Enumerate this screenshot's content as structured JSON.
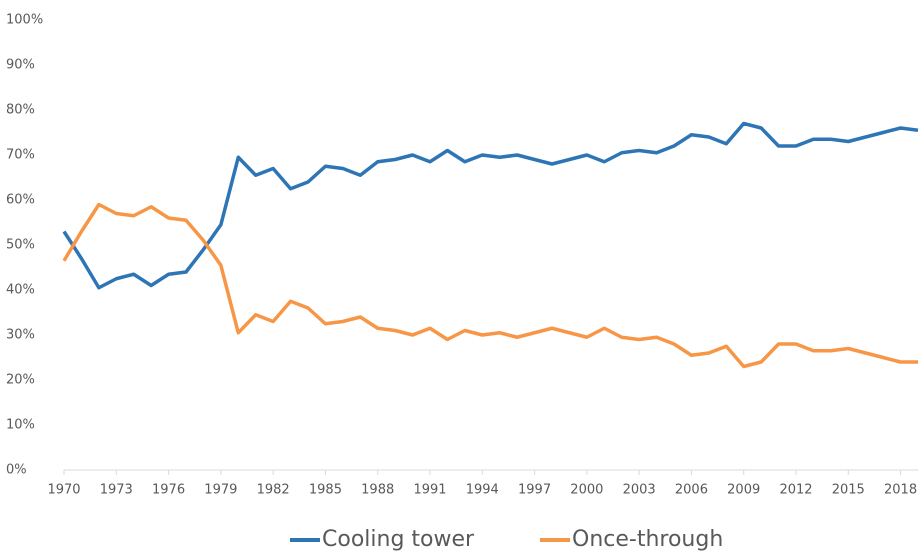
{
  "chart_data": {
    "type": "line",
    "x": [
      1970,
      1971,
      1972,
      1973,
      1974,
      1975,
      1976,
      1977,
      1978,
      1979,
      1980,
      1981,
      1982,
      1983,
      1984,
      1985,
      1986,
      1987,
      1988,
      1989,
      1990,
      1991,
      1992,
      1993,
      1994,
      1995,
      1996,
      1997,
      1998,
      1999,
      2000,
      2001,
      2002,
      2003,
      2004,
      2005,
      2006,
      2007,
      2008,
      2009,
      2010,
      2011,
      2012,
      2013,
      2014,
      2015,
      2016,
      2017,
      2018,
      2019
    ],
    "series": [
      {
        "name": "Cooling tower",
        "color": "#2e75b6",
        "values": [
          53,
          47,
          40.5,
          42.5,
          43.5,
          41,
          43.5,
          44,
          49,
          54.5,
          69.5,
          65.5,
          67,
          62.5,
          64,
          67.5,
          67,
          65.5,
          68.5,
          69,
          70,
          68.5,
          71,
          68.5,
          70,
          69.5,
          70,
          69,
          68,
          69,
          70,
          68.5,
          70.5,
          71,
          70.5,
          72,
          74.5,
          74,
          72.5,
          77,
          76,
          72,
          72,
          73.5,
          73.5,
          73,
          74,
          75,
          76,
          75.5
        ]
      },
      {
        "name": "Once-through",
        "color": "#f79646",
        "values": [
          46.5,
          53,
          59,
          57,
          56.5,
          58.5,
          56,
          55.5,
          51,
          45.5,
          30.5,
          34.5,
          33,
          37.5,
          36,
          32.5,
          33,
          34,
          31.5,
          31,
          30,
          31.5,
          29,
          31,
          30,
          30.5,
          29.5,
          30.5,
          31.5,
          30.5,
          29.5,
          31.5,
          29.5,
          29,
          29.5,
          28,
          25.5,
          26,
          27.5,
          23,
          24,
          28,
          28,
          26.5,
          26.5,
          27,
          26,
          25,
          24,
          24
        ]
      }
    ],
    "xlim": [
      1970,
      2019
    ],
    "xticks": [
      1970,
      1973,
      1976,
      1979,
      1982,
      1985,
      1988,
      1991,
      1994,
      1997,
      2000,
      2003,
      2006,
      2009,
      2012,
      2015,
      2018
    ],
    "ylim": [
      0,
      100
    ],
    "yticks": [
      {
        "value": 0,
        "label": "0%"
      },
      {
        "value": 10,
        "label": "10%"
      },
      {
        "value": 20,
        "label": "20%"
      },
      {
        "value": 30,
        "label": "30%"
      },
      {
        "value": 40,
        "label": "40%"
      },
      {
        "value": 50,
        "label": "50%"
      },
      {
        "value": 60,
        "label": "60%"
      },
      {
        "value": 70,
        "label": "70%"
      },
      {
        "value": 80,
        "label": "80%"
      },
      {
        "value": 90,
        "label": "90%"
      },
      {
        "value": 100,
        "label": "100%"
      }
    ],
    "legend": "bottom"
  }
}
